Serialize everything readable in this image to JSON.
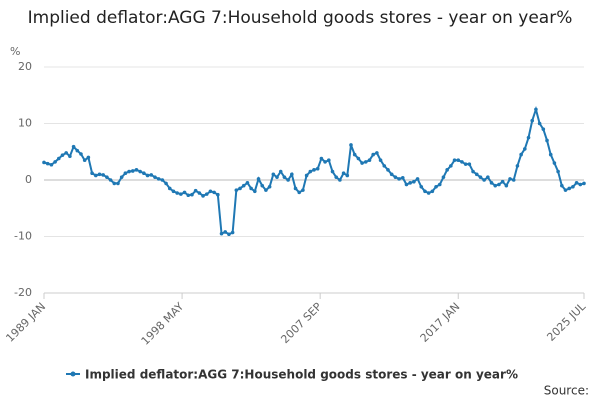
{
  "chart_data": {
    "type": "line",
    "title": "Implied deflator:AGG 7:Household goods stores - year on year%",
    "y_unit": "%",
    "source": "Source:",
    "xlim": [
      1989,
      2025.5
    ],
    "xticks": [
      {
        "value": 1989,
        "label": "1989 JAN"
      },
      {
        "value": 1998.333,
        "label": "1998 MAY"
      },
      {
        "value": 2007.667,
        "label": "2007 SEP"
      },
      {
        "value": 2017,
        "label": "2017 JAN"
      },
      {
        "value": 2025.5,
        "label": "2025 JUL"
      }
    ],
    "ylim": [
      -20,
      20
    ],
    "yticks": [
      -20,
      -10,
      0,
      10,
      20
    ],
    "grid": true,
    "legend": "bottom",
    "x": [
      1989,
      1989.25,
      1989.5,
      1989.75,
      1990,
      1990.25,
      1990.5,
      1990.75,
      1991,
      1991.25,
      1991.5,
      1991.75,
      1992,
      1992.25,
      1992.5,
      1992.75,
      1993,
      1993.25,
      1993.5,
      1993.75,
      1994,
      1994.25,
      1994.5,
      1994.75,
      1995,
      1995.25,
      1995.5,
      1995.75,
      1996,
      1996.25,
      1996.5,
      1996.75,
      1997,
      1997.25,
      1997.5,
      1997.75,
      1998,
      1998.25,
      1998.5,
      1998.75,
      1999,
      1999.25,
      1999.5,
      1999.75,
      2000,
      2000.25,
      2000.5,
      2000.75,
      2001,
      2001.25,
      2001.5,
      2001.75,
      2002,
      2002.25,
      2002.5,
      2002.75,
      2003,
      2003.25,
      2003.5,
      2003.75,
      2004,
      2004.25,
      2004.5,
      2004.75,
      2005,
      2005.25,
      2005.5,
      2005.75,
      2006,
      2006.25,
      2006.5,
      2006.75,
      2007,
      2007.25,
      2007.5,
      2007.75,
      2008,
      2008.25,
      2008.5,
      2008.75,
      2009,
      2009.25,
      2009.5,
      2009.75,
      2010,
      2010.25,
      2010.5,
      2010.75,
      2011,
      2011.25,
      2011.5,
      2011.75,
      2012,
      2012.25,
      2012.5,
      2012.75,
      2013,
      2013.25,
      2013.5,
      2013.75,
      2014,
      2014.25,
      2014.5,
      2014.75,
      2015,
      2015.25,
      2015.5,
      2015.75,
      2016,
      2016.25,
      2016.5,
      2016.75,
      2017,
      2017.25,
      2017.5,
      2017.75,
      2018,
      2018.25,
      2018.5,
      2018.75,
      2019,
      2019.25,
      2019.5,
      2019.75,
      2020,
      2020.25,
      2020.5,
      2020.75,
      2021,
      2021.25,
      2021.5,
      2021.75,
      2022,
      2022.25,
      2022.5,
      2022.75,
      2023,
      2023.25,
      2023.5,
      2023.75,
      2024,
      2024.25,
      2024.5,
      2024.75,
      2025,
      2025.25,
      2025.5
    ],
    "series": [
      {
        "name": "Implied deflator:AGG 7:Household goods stores - year on year%",
        "color": "#1f78b4",
        "values": [
          3.1,
          2.9,
          2.7,
          3.2,
          3.8,
          4.4,
          4.8,
          4.2,
          5.9,
          5.2,
          4.6,
          3.5,
          4.0,
          1.2,
          0.8,
          1.0,
          0.9,
          0.5,
          0.0,
          -0.6,
          -0.6,
          0.5,
          1.2,
          1.5,
          1.6,
          1.8,
          1.5,
          1.2,
          0.8,
          0.9,
          0.5,
          0.2,
          0.0,
          -0.6,
          -1.5,
          -2.0,
          -2.3,
          -2.5,
          -2.2,
          -2.7,
          -2.6,
          -1.9,
          -2.3,
          -2.8,
          -2.5,
          -2.0,
          -2.2,
          -2.6,
          -9.5,
          -9.2,
          -9.6,
          -9.3,
          -1.8,
          -1.5,
          -1.0,
          -0.5,
          -1.5,
          -2.0,
          0.2,
          -1.0,
          -1.8,
          -1.2,
          1.0,
          0.5,
          1.5,
          0.5,
          0.0,
          1.0,
          -1.5,
          -2.2,
          -1.8,
          0.8,
          1.5,
          1.8,
          2.0,
          3.8,
          3.2,
          3.5,
          1.5,
          0.5,
          0.0,
          1.2,
          0.8,
          6.2,
          4.5,
          3.8,
          3.0,
          3.2,
          3.5,
          4.5,
          4.8,
          3.5,
          2.5,
          1.8,
          1.0,
          0.5,
          0.2,
          0.4,
          -0.8,
          -0.5,
          -0.3,
          0.2,
          -1.2,
          -2.0,
          -2.3,
          -2.0,
          -1.2,
          -0.8,
          0.5,
          1.8,
          2.5,
          3.5,
          3.5,
          3.2,
          2.8,
          2.8,
          1.5,
          1.0,
          0.5,
          0.0,
          0.5,
          -0.5,
          -1.0,
          -0.8,
          -0.3,
          -1.0,
          0.2,
          0.0,
          2.5,
          4.5,
          5.5,
          7.5,
          10.5,
          12.5,
          10.0,
          9.0,
          7.0,
          4.5,
          3.0,
          1.5,
          -1.0,
          -1.8,
          -1.5,
          -1.2,
          -0.5,
          -0.8,
          -0.6
        ]
      }
    ]
  }
}
